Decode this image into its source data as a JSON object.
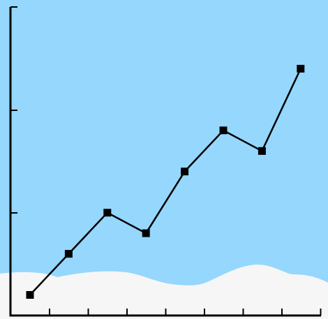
{
  "colors": {
    "sky": "#95d7fd",
    "snow": "#f6f6f6",
    "line": "#000000",
    "axis": "#000000"
  },
  "chart_data": {
    "type": "line",
    "x": [
      1,
      2,
      3,
      4,
      5,
      6,
      7,
      8
    ],
    "values": [
      1,
      3,
      5,
      4,
      7,
      9,
      8,
      12
    ],
    "ylim": [
      0,
      15
    ],
    "grid": false,
    "title": "",
    "xlabel": "",
    "ylabel": "",
    "marker": "square",
    "background": "sky-with-snow-hills"
  }
}
